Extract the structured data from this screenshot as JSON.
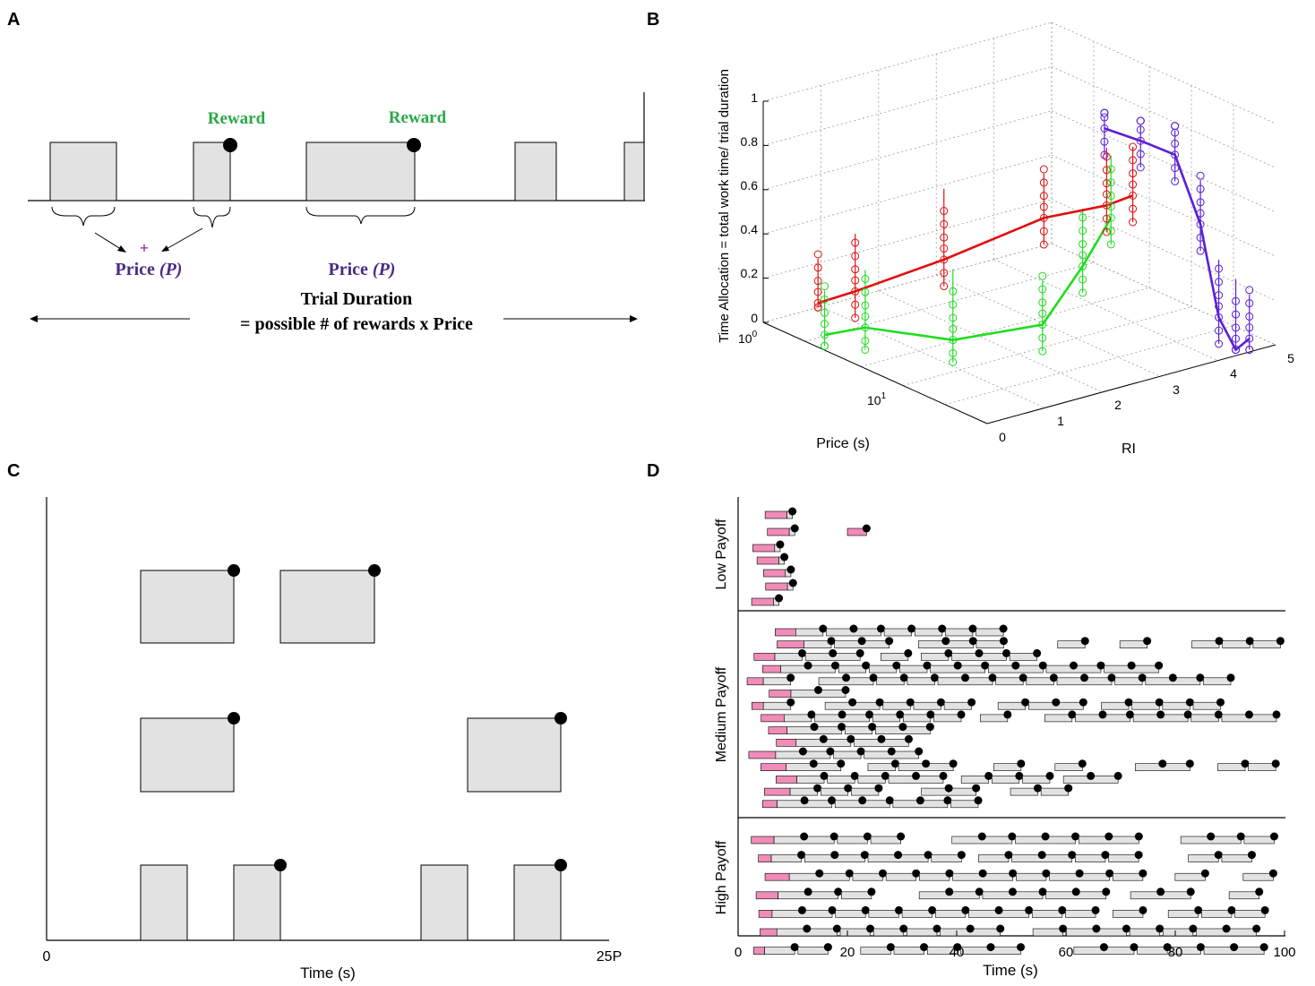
{
  "panels": {
    "A": {
      "letter": "A",
      "reward_labels": [
        "Reward",
        "Reward"
      ],
      "price_labels": [
        {
          "text": "Price ",
          "var": "(P)"
        },
        {
          "text": "Price ",
          "var": "(P)"
        }
      ],
      "plus": "+",
      "trial_duration": "Trial Duration",
      "equation": "= possible # of rewards x Price",
      "colors": {
        "reward": "#2aa848",
        "price": "#4a2a85",
        "plus": "#8a2a8a",
        "box": "#e2e2e2"
      }
    },
    "B": {
      "letter": "B",
      "zlabel": "Time Allocation = total work time/ trial duration",
      "xlabel": "Price (s)",
      "ylabel": "RI",
      "z_ticks": [
        "0",
        "0.2",
        "0.4",
        "0.6",
        "0.8",
        "1"
      ],
      "ri_ticks": [
        "0",
        "1",
        "2",
        "3",
        "4",
        "5"
      ],
      "price_ticks": [
        {
          "base": "10",
          "exp": "0"
        },
        {
          "base": "10",
          "exp": "1"
        }
      ],
      "colors": {
        "low": "#e01010",
        "medium": "#20dd20",
        "high": "#5a1fd6"
      }
    },
    "C": {
      "letter": "C",
      "xlabel": "Time (s)",
      "x_start": "0",
      "x_end": "25P"
    },
    "D": {
      "letter": "D",
      "xlabel": "Time (s)",
      "x_ticks": [
        "0",
        "20",
        "40",
        "60",
        "80",
        "100"
      ],
      "rows": [
        "Low Payoff",
        "Medium Payoff",
        "High Payoff"
      ],
      "colors": {
        "pink": "#f08cb8",
        "gray": "#e2e2e2"
      }
    }
  },
  "chart_data": [
    {
      "panel": "B",
      "type": "line",
      "xlabel": "Price (s)",
      "ylabel": "RI",
      "zlabel": "Time Allocation = total work time/ trial duration",
      "zlim": [
        0,
        1
      ],
      "series": [
        {
          "color": "#e01010",
          "points": [
            [
              1,
              0.95,
              0.02
            ],
            [
              1.6,
              1.1,
              0.12
            ],
            [
              4.5,
              1.55,
              0.36
            ],
            [
              12,
              2.25,
              0.62
            ],
            [
              22,
              2.7,
              0.72
            ],
            [
              28,
              2.9,
              0.78
            ]
          ]
        },
        {
          "color": "#20dd20",
          "points": [
            [
              2.5,
              0.1,
              0.05
            ],
            [
              3.5,
              0.45,
              0.1
            ],
            [
              8,
              1.1,
              0.1
            ],
            [
              18,
              1.8,
              0.22
            ],
            [
              25,
              2.15,
              0.5
            ],
            [
              30,
              2.45,
              0.72
            ]
          ]
        },
        {
          "color": "#5a1fd6",
          "points": [
            [
              12,
              3.3,
              0.95
            ],
            [
              18,
              3.5,
              0.93
            ],
            [
              25,
              3.75,
              0.89
            ],
            [
              30,
              4.0,
              0.58
            ],
            [
              32,
              4.25,
              0.15
            ],
            [
              35,
              4.45,
              0.0
            ],
            [
              38,
              4.6,
              0.05
            ]
          ]
        }
      ]
    },
    {
      "panel": "D",
      "type": "table",
      "xlabel": "Time (s)",
      "xlim": [
        0,
        100
      ]
    }
  ]
}
